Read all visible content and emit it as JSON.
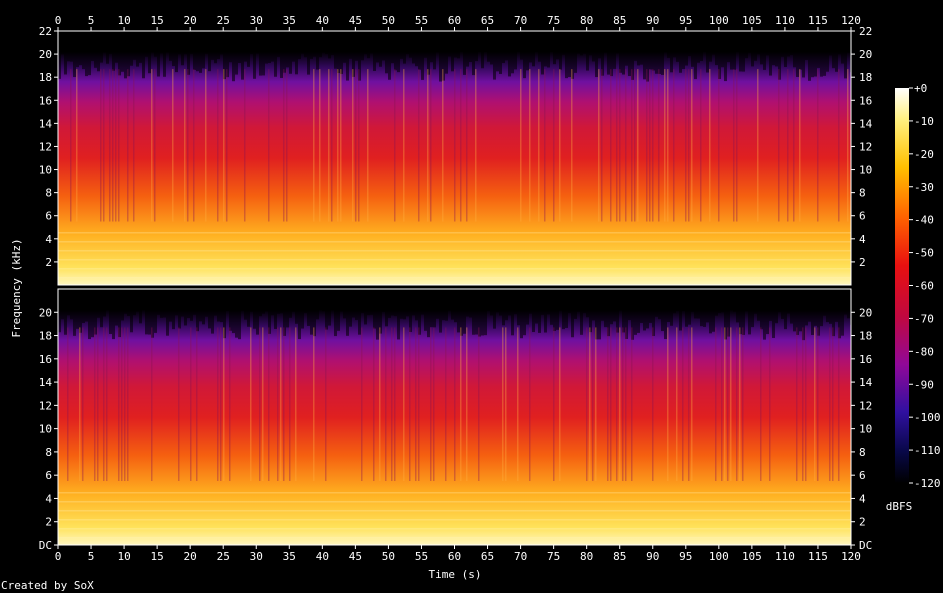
{
  "chart_data": {
    "type": "heatmap",
    "title": "",
    "xlabel": "Time (s)",
    "ylabel": "Frequency (kHz)",
    "x_ticks": [
      "0",
      "5",
      "10",
      "15",
      "20",
      "25",
      "30",
      "35",
      "40",
      "45",
      "50",
      "55",
      "60",
      "65",
      "70",
      "75",
      "80",
      "85",
      "90",
      "95",
      "100",
      "105",
      "110",
      "115",
      "120"
    ],
    "xlim": [
      0,
      120
    ],
    "channels": [
      {
        "y_ticks": [
          "2",
          "4",
          "6",
          "8",
          "10",
          "12",
          "14",
          "16",
          "18",
          "20",
          "22"
        ],
        "ylim": [
          0,
          22
        ]
      },
      {
        "y_ticks": [
          "DC",
          "2",
          "4",
          "6",
          "8",
          "10",
          "12",
          "14",
          "16",
          "18",
          "20"
        ],
        "ylim": [
          0,
          22
        ]
      }
    ],
    "colorbar": {
      "label": "dBFS",
      "ticks": [
        "+0",
        "-10",
        "-20",
        "-30",
        "-40",
        "-50",
        "-60",
        "-70",
        "-80",
        "-90",
        "-100",
        "-110",
        "-120"
      ],
      "range": [
        -120,
        0
      ]
    },
    "credit": "Created by SoX"
  }
}
